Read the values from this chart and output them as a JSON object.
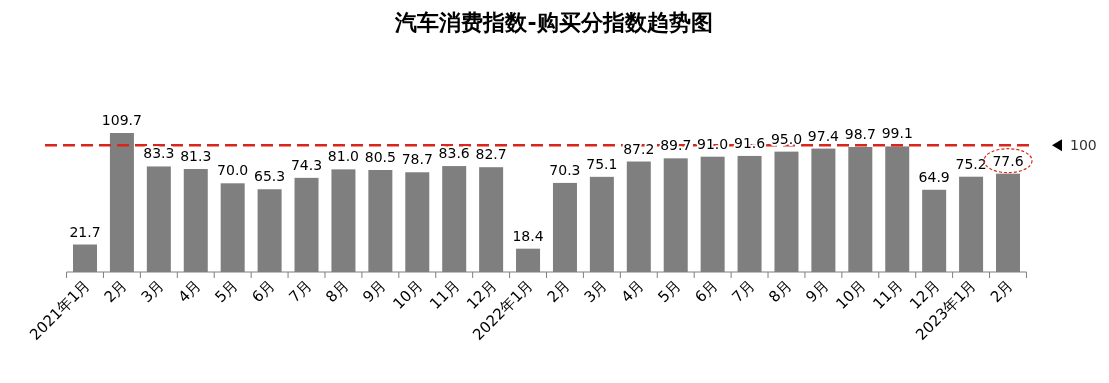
{
  "chart_data": {
    "type": "bar",
    "title": "汽车消费指数-购买分指数趋势图",
    "categories": [
      "2021年1月",
      "2月",
      "3月",
      "4月",
      "5月",
      "6月",
      "7月",
      "8月",
      "9月",
      "10月",
      "11月",
      "12月",
      "2022年1月",
      "2月",
      "3月",
      "4月",
      "5月",
      "6月",
      "7月",
      "8月",
      "9月",
      "10月",
      "11月",
      "12月",
      "2023年1月",
      "2月"
    ],
    "values": [
      21.7,
      109.7,
      83.3,
      81.3,
      70.0,
      65.3,
      74.3,
      81.0,
      80.5,
      78.7,
      83.6,
      82.7,
      18.4,
      70.3,
      75.1,
      87.2,
      89.7,
      91.0,
      91.6,
      95.0,
      97.4,
      98.7,
      99.1,
      64.9,
      75.2,
      77.6
    ],
    "value_labels": [
      "21.7",
      "109.7",
      "83.3",
      "81.3",
      "70.0",
      "65.3",
      "74.3",
      "81.0",
      "80.5",
      "78.7",
      "83.6",
      "82.7",
      "18.4",
      "70.3",
      "75.1",
      "87.2",
      "89.7",
      "91.0",
      "91.6",
      "95.0",
      "97.4",
      "98.7",
      "99.1",
      "64.9",
      "75.2",
      "77.6"
    ],
    "color": "#7f7f7f",
    "ref_lines": [
      {
        "axis": "y",
        "value": 100,
        "label": "100",
        "color": "#d9261c",
        "line_style": "dashed"
      }
    ]
  }
}
